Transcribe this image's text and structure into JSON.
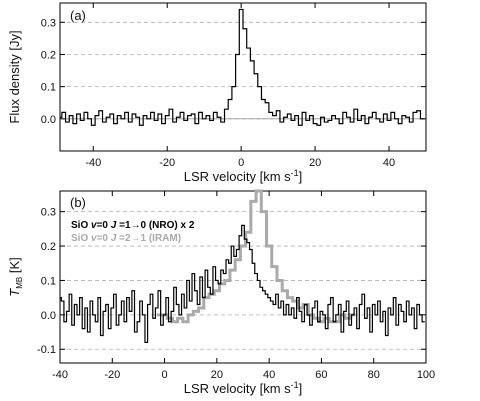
{
  "chart_data": [
    {
      "type": "line",
      "panel_label": "(a)",
      "xlabel": "LSR velocity [km s",
      "xlabel_sup": "-1",
      "xlabel_close": "]",
      "ylabel": "Flux density [Jy]",
      "xlim": [
        -49,
        50
      ],
      "ylim": [
        -0.1,
        0.36
      ],
      "xticks": [
        -40,
        -20,
        0,
        20,
        40
      ],
      "xtick_labels": [
        "-40",
        "-20",
        "0",
        "20",
        "40"
      ],
      "yticks": [
        0.0,
        0.1,
        0.2,
        0.3
      ],
      "ytick_labels": [
        "0.0",
        "0.1",
        "0.2",
        "0.3"
      ],
      "grid": "dashed-horizontal",
      "baseline": 0,
      "series": [
        {
          "color": "#000000",
          "step": true,
          "x": [
            -49,
            -48,
            -47,
            -46,
            -45,
            -44,
            -43,
            -42,
            -41,
            -40,
            -39,
            -38,
            -37,
            -36,
            -35,
            -34,
            -33,
            -32,
            -31,
            -30,
            -29,
            -28,
            -27,
            -26,
            -25,
            -24,
            -23,
            -22,
            -21,
            -20,
            -19,
            -18,
            -17,
            -16,
            -15,
            -14,
            -13,
            -12,
            -11,
            -10,
            -9,
            -8,
            -7,
            -6,
            -5,
            -4,
            -3,
            -2,
            -1,
            0,
            1,
            2,
            3,
            4,
            5,
            6,
            7,
            8,
            9,
            10,
            11,
            12,
            13,
            14,
            15,
            16,
            17,
            18,
            19,
            20,
            21,
            22,
            23,
            24,
            25,
            26,
            27,
            28,
            29,
            30,
            31,
            32,
            33,
            34,
            35,
            36,
            37,
            38,
            39,
            40,
            41,
            42,
            43,
            44,
            45,
            46,
            47,
            48,
            49
          ],
          "y": [
            0.005,
            0.02,
            -0.01,
            0.01,
            -0.015,
            0.015,
            -0.005,
            0.02,
            0.0,
            -0.02,
            0.01,
            0.025,
            -0.01,
            0.005,
            0.015,
            -0.015,
            0.01,
            0.0,
            0.02,
            -0.01,
            0.015,
            0.005,
            -0.02,
            0.01,
            0.0,
            0.02,
            -0.005,
            0.015,
            -0.015,
            0.01,
            0.03,
            -0.01,
            0.005,
            0.02,
            -0.005,
            0.01,
            0.015,
            -0.015,
            0.02,
            0.0,
            0.01,
            -0.005,
            0.02,
            0.005,
            -0.01,
            0.03,
            0.06,
            0.1,
            0.2,
            0.34,
            0.28,
            0.22,
            0.18,
            0.14,
            0.1,
            0.06,
            0.05,
            0.02,
            0.01,
            0.025,
            -0.01,
            0.005,
            0.015,
            -0.005,
            0.01,
            -0.02,
            0.02,
            -0.005,
            0.01,
            -0.015,
            -0.02,
            0.005,
            -0.01,
            -0.005,
            0.01,
            0.0,
            -0.015,
            0.02,
            0.005,
            -0.01,
            0.03,
            -0.005,
            0.01,
            -0.015,
            0.005,
            0.02,
            0.0,
            -0.01,
            0.015,
            -0.005,
            0.02,
            0.0,
            -0.015,
            0.01,
            0.005,
            -0.01,
            0.02,
            0.025,
            0.0
          ]
        }
      ]
    },
    {
      "type": "line",
      "panel_label": "(b)",
      "xlabel": "LSR velocity [km s",
      "xlabel_sup": "-1",
      "xlabel_close": "]",
      "ylabel": "T",
      "ylabel_sub": "MB",
      "ylabel_unit": " [K]",
      "xlim": [
        -40,
        100
      ],
      "ylim": [
        -0.14,
        0.36
      ],
      "xticks": [
        -40,
        -20,
        0,
        20,
        40,
        60,
        80,
        100
      ],
      "xtick_labels": [
        "-40",
        "-20",
        "0",
        "20",
        "40",
        "60",
        "80",
        "100"
      ],
      "yticks": [
        -0.1,
        0.0,
        0.1,
        0.2,
        0.3
      ],
      "ytick_labels": [
        "-0.1",
        "0.0",
        "0.1",
        "0.2",
        "0.3"
      ],
      "grid": "dashed-horizontal",
      "legend": [
        {
          "pre": "SiO ",
          "italic1": "v",
          "mid1": "=0 ",
          "italic2": "J",
          "mid2": " =1→0 (NRO) x 2",
          "color": "#000000"
        },
        {
          "pre": "SiO ",
          "italic1": "v",
          "mid1": "=0 ",
          "italic2": "J",
          "mid2": " =2→1 (IRAM)",
          "color": "#aaaaaa"
        }
      ],
      "legend_position": "top-left",
      "series": [
        {
          "name": "SiO v=0 J=1→0 (NRO) x 2",
          "color": "#000000",
          "step": true,
          "x": [
            -40,
            -39,
            -38,
            -37,
            -36,
            -35,
            -34,
            -33,
            -32,
            -31,
            -30,
            -29,
            -28,
            -27,
            -26,
            -25,
            -24,
            -23,
            -22,
            -21,
            -20,
            -19,
            -18,
            -17,
            -16,
            -15,
            -14,
            -13,
            -12,
            -11,
            -10,
            -9,
            -8,
            -7,
            -6,
            -5,
            -4,
            -3,
            -2,
            -1,
            0,
            1,
            2,
            3,
            4,
            5,
            6,
            7,
            8,
            9,
            10,
            11,
            12,
            13,
            14,
            15,
            16,
            17,
            18,
            19,
            20,
            21,
            22,
            23,
            24,
            25,
            26,
            27,
            28,
            29,
            30,
            31,
            32,
            33,
            34,
            35,
            36,
            37,
            38,
            39,
            40,
            41,
            42,
            43,
            44,
            45,
            46,
            47,
            48,
            49,
            50,
            51,
            52,
            53,
            54,
            55,
            56,
            57,
            58,
            59,
            60,
            61,
            62,
            63,
            64,
            65,
            66,
            67,
            68,
            69,
            70,
            71,
            72,
            73,
            74,
            75,
            76,
            77,
            78,
            79,
            80,
            81,
            82,
            83,
            84,
            85,
            86,
            87,
            88,
            89,
            90,
            91,
            92,
            93,
            94,
            95,
            96,
            97,
            98,
            99
          ],
          "y": [
            0.05,
            0.04,
            -0.02,
            0.01,
            0.06,
            -0.03,
            0.03,
            0.0,
            0.05,
            -0.04,
            0.02,
            -0.05,
            0.04,
            0.0,
            -0.02,
            0.05,
            -0.06,
            0.01,
            0.03,
            -0.04,
            0.02,
            0.06,
            -0.03,
            0.0,
            0.04,
            -0.02,
            0.05,
            0.01,
            0.07,
            -0.05,
            -0.02,
            0.04,
            0.0,
            -0.08,
            0.03,
            0.06,
            -0.01,
            0.02,
            0.07,
            -0.03,
            0.0,
            0.05,
            -0.02,
            0.01,
            0.08,
            0.03,
            0.0,
            0.06,
            0.02,
            0.1,
            0.04,
            0.12,
            0.07,
            0.03,
            0.11,
            0.05,
            0.13,
            0.08,
            0.06,
            0.14,
            0.1,
            0.09,
            0.13,
            0.12,
            0.16,
            0.15,
            0.2,
            0.17,
            0.19,
            0.23,
            0.26,
            0.22,
            0.21,
            0.19,
            0.15,
            0.12,
            0.1,
            0.08,
            0.07,
            0.06,
            0.05,
            0.04,
            0.03,
            0.06,
            0.02,
            0.04,
            0.0,
            0.03,
            0.0,
            0.02,
            -0.01,
            0.05,
            0.01,
            -0.02,
            0.03,
            0.0,
            -0.03,
            0.02,
            0.04,
            -0.02,
            0.01,
            0.0,
            -0.04,
            0.03,
            0.05,
            -0.02,
            0.0,
            0.03,
            -0.05,
            0.01,
            0.04,
            -0.03,
            0.0,
            0.02,
            -0.04,
            0.03,
            0.06,
            -0.01,
            0.02,
            -0.05,
            0.03,
            0.0,
            0.04,
            -0.02,
            0.01,
            -0.06,
            0.02,
            0.0,
            0.05,
            -0.03,
            0.03,
            0.01,
            -0.02,
            0.04,
            0.0,
            0.02,
            -0.04,
            0.03,
            0.0,
            -0.02
          ]
        },
        {
          "name": "SiO v=0 J=2→1 (IRAM)",
          "color": "#aaaaaa",
          "step": true,
          "x": [
            -2,
            0,
            2,
            4,
            6,
            8,
            10,
            12,
            14,
            16,
            18,
            20,
            22,
            24,
            26,
            28,
            30,
            32,
            34,
            36,
            38,
            40,
            42,
            44,
            46,
            48,
            50,
            52,
            54,
            56,
            58,
            60,
            62,
            64,
            66,
            68,
            70,
            72
          ],
          "y": [
            0.0,
            0.0,
            -0.01,
            -0.02,
            -0.01,
            -0.02,
            0.0,
            0.01,
            0.02,
            0.05,
            0.06,
            0.07,
            0.09,
            0.1,
            0.13,
            0.16,
            0.2,
            0.24,
            0.33,
            0.36,
            0.3,
            0.2,
            0.14,
            0.1,
            0.07,
            0.05,
            0.04,
            0.02,
            0.03,
            0.0,
            -0.01,
            -0.02,
            -0.01,
            -0.02,
            -0.02,
            0.0,
            -0.01,
            0.0
          ]
        }
      ]
    }
  ]
}
